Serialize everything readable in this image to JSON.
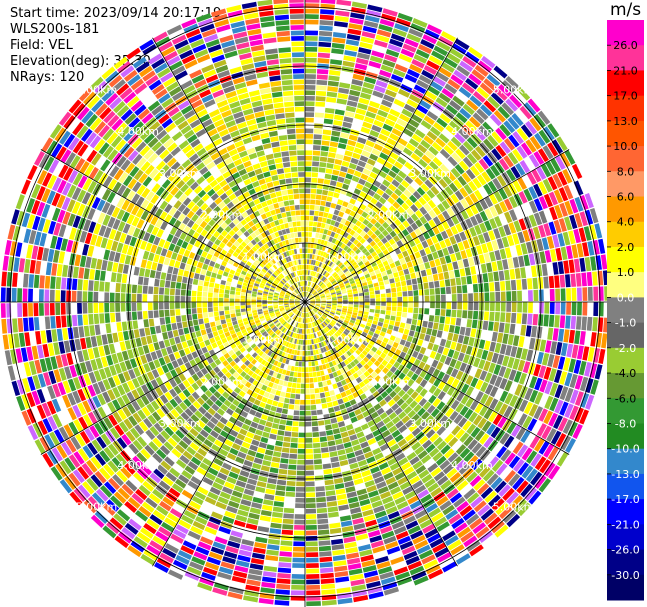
{
  "header": {
    "start_time": "Start time: 2023/09/14 20:17:19",
    "instrument": "WLS200s-181",
    "field": "Field: VEL",
    "elevation": "Elevation(deg): 35.30",
    "nrays": "NRays: 120"
  },
  "chart_data": {
    "type": "heatmap",
    "projection": "polar-ppi",
    "field": "VEL",
    "rays": 120,
    "range_rings_km": [
      1,
      2,
      3,
      4,
      5
    ],
    "ring_labels": {
      "upper_left": [
        "1.00km",
        "2.00km",
        "3.00km",
        "4.00km",
        "5.00km"
      ],
      "upper_right": [
        "1.00km",
        "2.00km",
        "3.00km",
        "4.00km",
        "5.00km"
      ],
      "lower_left": [
        "1.00km",
        "2.00km",
        "3.00km",
        "4.00km",
        "5.00km"
      ],
      "lower_right": [
        "1.00km",
        "2.00km",
        "3.00km",
        "4.00km",
        "5.00km"
      ]
    },
    "spokes_deg": [
      0,
      30,
      60,
      90,
      120,
      150,
      180,
      210,
      240,
      270,
      300,
      330
    ],
    "colorbar": {
      "unit": "m/s",
      "ticks": [
        "26.0",
        "21.0",
        "17.0",
        "13.0",
        "10.0",
        "8.0",
        "6.0",
        "4.0",
        "2.0",
        "1.0",
        "0.0",
        "-1.0",
        "-2.0",
        "-4.0",
        "-6.0",
        "-8.0",
        "-10.0",
        "-13.0",
        "-17.0",
        "-21.0",
        "-26.0",
        "-30.0"
      ],
      "colors": [
        "#ff00cc",
        "#ff3399",
        "#ff0000",
        "#ff3300",
        "#ff5500",
        "#ff6633",
        "#ff9966",
        "#ff9900",
        "#ffcc00",
        "#ffff00",
        "#ffff80",
        "#808080",
        "#666666",
        "#99cc33",
        "#669933",
        "#339933",
        "#228b22",
        "#3388cc",
        "#1155ee",
        "#0000ff",
        "#0000cc",
        "#000088",
        "#000066"
      ]
    }
  }
}
